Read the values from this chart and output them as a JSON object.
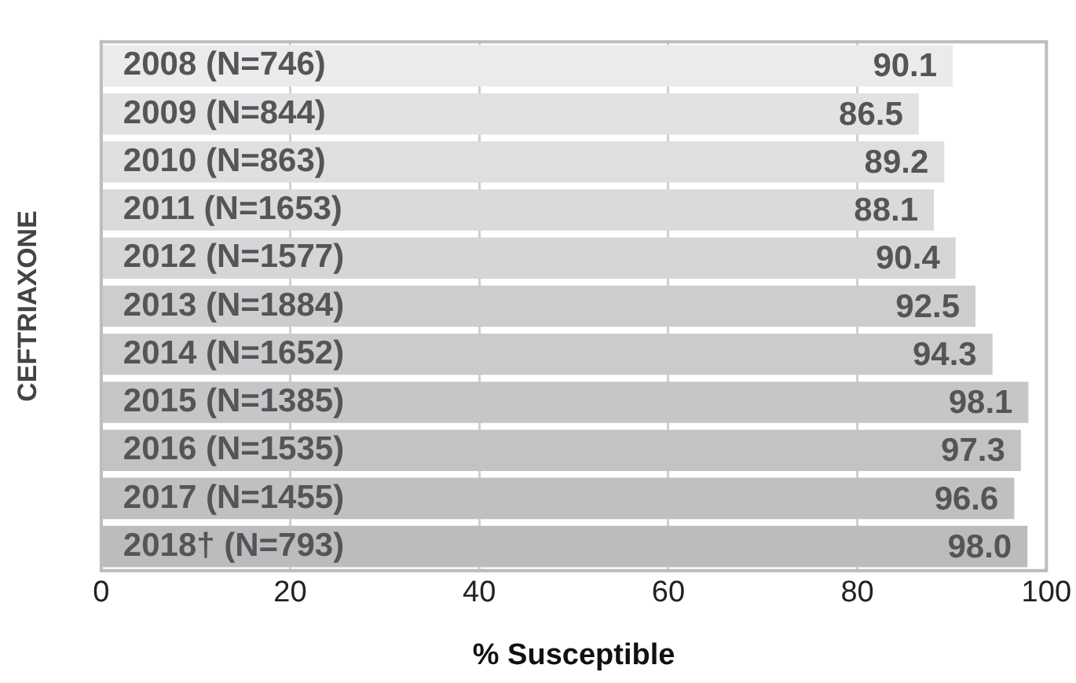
{
  "chart_data": {
    "type": "bar",
    "orientation": "horizontal",
    "xlabel": "% Susceptible",
    "ylabel": "CEFTRIAXONE",
    "categories": [
      "2008 (N=746)",
      "2009 (N=844)",
      "2010 (N=863)",
      "2011 (N=1653)",
      "2012 (N=1577)",
      "2013 (N=1884)",
      "2014 (N=1652)",
      "2015 (N=1385)",
      "2016 (N=1535)",
      "2017 (N=1455)",
      "2018† (N=793)"
    ],
    "values": [
      90.1,
      86.5,
      89.2,
      88.1,
      90.4,
      92.5,
      94.3,
      98.1,
      97.3,
      96.6,
      98.0
    ],
    "value_labels": [
      "90.1",
      "86.5",
      "89.2",
      "88.1",
      "90.4",
      "92.5",
      "94.3",
      "98.1",
      "97.3",
      "96.6",
      "98.0"
    ],
    "colors": [
      "#ebebed",
      "#e2e2e4",
      "#dfdfe1",
      "#dadadc",
      "#d6d6d8",
      "#cdcdcf",
      "#cbcbcd",
      "#c6c6c8",
      "#c3c3c5",
      "#c0c0c2",
      "#bcbcbf"
    ],
    "xlim": [
      0,
      100
    ],
    "xticks": [
      0,
      20,
      40,
      60,
      80,
      100
    ],
    "grid": "x",
    "legend": false
  }
}
